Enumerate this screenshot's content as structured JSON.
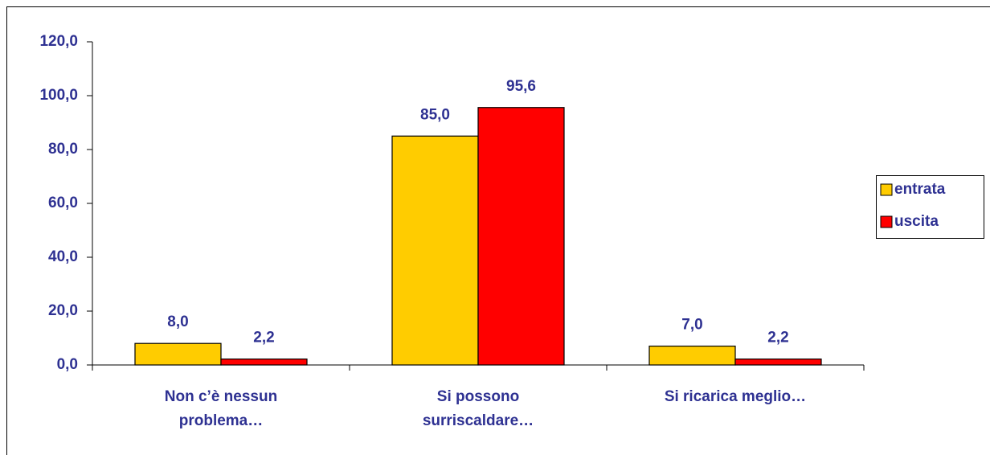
{
  "chart_data": {
    "type": "bar",
    "categories": [
      "Non c’è nessun problema…",
      "Si possono surriscaldare…",
      "Si ricarica meglio…"
    ],
    "series": [
      {
        "name": "entrata",
        "color": "#ffcc00",
        "values": [
          8.0,
          85.0,
          7.0
        ],
        "value_labels": [
          "8,0",
          "85,0",
          "7,0"
        ]
      },
      {
        "name": "uscita",
        "color": "#ff0000",
        "values": [
          2.2,
          95.6,
          2.2
        ],
        "value_labels": [
          "2,2",
          "95,6",
          "2,2"
        ]
      }
    ],
    "ylim": [
      0,
      120
    ],
    "yticks": [
      {
        "value": 0,
        "label": "0,0"
      },
      {
        "value": 20,
        "label": "20,0"
      },
      {
        "value": 40,
        "label": "40,0"
      },
      {
        "value": 60,
        "label": "60,0"
      },
      {
        "value": 80,
        "label": "80,0"
      },
      {
        "value": 100,
        "label": "100,0"
      },
      {
        "value": 120,
        "label": "120,0"
      }
    ],
    "grid": false,
    "legend": "right"
  }
}
